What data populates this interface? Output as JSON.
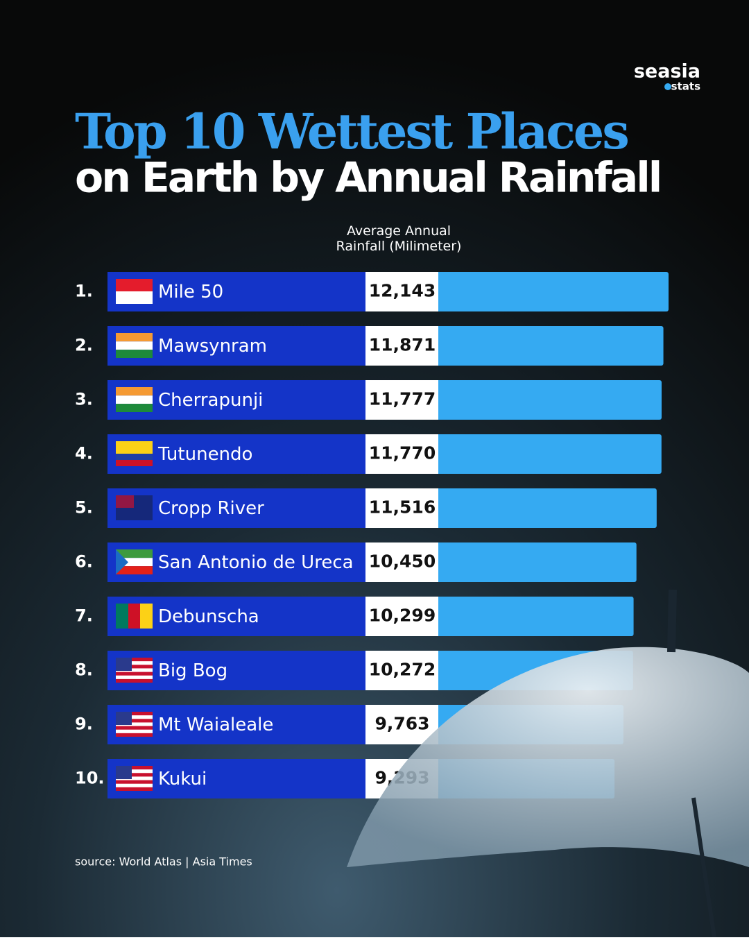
{
  "brand": {
    "name": "seasia",
    "tag": "stats"
  },
  "chart_data": {
    "type": "bar",
    "title": "Top 10 Wettest Places",
    "subtitle": "on Earth by Annual Rainfall",
    "value_axis_label": "Average Annual Rainfall (Milimeter)",
    "ranks": [
      "1.",
      "2.",
      "3.",
      "4.",
      "5.",
      "6.",
      "7.",
      "8.",
      "9.",
      "10."
    ],
    "categories": [
      "Mile 50",
      "Mawsynram",
      "Cherrapunji",
      "Tutunendo",
      "Cropp River",
      "San Antonio de Ureca",
      "Debunscha",
      "Big Bog",
      "Mt Waialeale",
      "Kukui"
    ],
    "values": [
      12143,
      11871,
      11777,
      11770,
      11516,
      10450,
      10299,
      10272,
      9763,
      9293
    ],
    "value_labels": [
      "12,143",
      "11,871",
      "11,777",
      "11,770",
      "11,516",
      "10,450",
      "10,299",
      "10,272",
      "9,763",
      "9,293"
    ],
    "color": "#35aaf2",
    "source": "source: World Atlas | Asia Times"
  }
}
